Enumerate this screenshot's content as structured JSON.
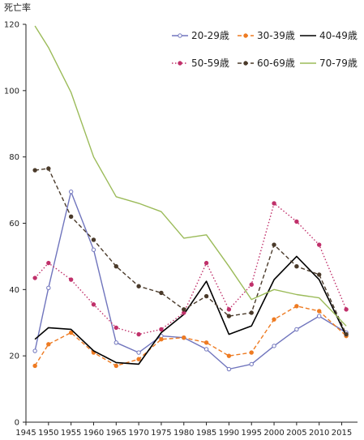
{
  "chart_data": {
    "type": "line",
    "title": "",
    "xlabel": "",
    "ylabel": "死亡率",
    "xlim": [
      1945,
      2015
    ],
    "ylim": [
      0,
      120
    ],
    "x_ticks": [
      1945,
      1950,
      1955,
      1960,
      1965,
      1970,
      1975,
      1980,
      1985,
      1990,
      1995,
      2000,
      2005,
      2010,
      2015
    ],
    "y_ticks": [
      0,
      20,
      40,
      60,
      80,
      100,
      120
    ],
    "grid": false,
    "legend_position": "top-right",
    "x": [
      1947,
      1950,
      1955,
      1960,
      1965,
      1970,
      1975,
      1980,
      1985,
      1990,
      1995,
      2000,
      2005,
      2010,
      2016
    ],
    "series": [
      {
        "name": "20-29歳",
        "color": "#7075bd",
        "dash": "solid",
        "marker": "circle-open",
        "values": [
          21.5,
          40.5,
          69.5,
          52,
          24,
          21,
          26,
          25.5,
          22,
          16,
          17.5,
          23,
          28,
          32,
          27
        ]
      },
      {
        "name": "30-39歳",
        "color": "#ee7b22",
        "dash": "dash",
        "marker": "circle",
        "values": [
          17,
          23.5,
          27,
          21,
          17,
          19,
          25,
          25.5,
          24,
          20,
          21,
          31,
          35,
          33.5,
          26
        ]
      },
      {
        "name": "40-49歳",
        "color": "#000000",
        "dash": "solid",
        "marker": "none",
        "values": [
          25,
          28.5,
          28,
          21.5,
          18,
          17.5,
          27,
          32.5,
          42.5,
          26.5,
          29,
          43,
          50,
          43,
          26
        ]
      },
      {
        "name": "50-59歳",
        "color": "#c0306a",
        "dash": "dot",
        "marker": "circle",
        "values": [
          43.5,
          48,
          43,
          35.5,
          28.5,
          26.5,
          28,
          33,
          48,
          34,
          41.5,
          66,
          60.5,
          53.5,
          34
        ]
      },
      {
        "name": "60-69歳",
        "color": "#4a3a2a",
        "dash": "dash",
        "marker": "circle",
        "values": [
          76,
          76.5,
          62,
          55,
          47,
          41,
          39,
          34,
          38,
          32,
          33,
          53.5,
          47,
          44.5,
          26.5
        ]
      },
      {
        "name": "70-79歳",
        "color": "#9bbb59",
        "dash": "solid",
        "marker": "none",
        "values": [
          119.5,
          113,
          99.5,
          80,
          68,
          66,
          63.5,
          55.5,
          56.5,
          47,
          37,
          40,
          38.5,
          37.5,
          29
        ]
      }
    ]
  }
}
